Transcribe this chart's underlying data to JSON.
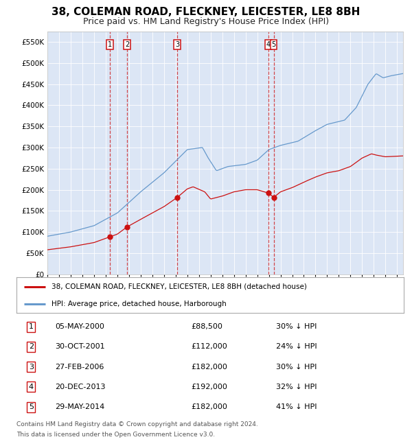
{
  "title": "38, COLEMAN ROAD, FLECKNEY, LEICESTER, LE8 8BH",
  "subtitle": "Price paid vs. HM Land Registry's House Price Index (HPI)",
  "title_fontsize": 11,
  "subtitle_fontsize": 9,
  "background_color": "#ffffff",
  "plot_bg_color": "#dce6f5",
  "hpi_color": "#6699cc",
  "price_color": "#cc1111",
  "vline_color": "#cc1111",
  "ylim": [
    0,
    575000
  ],
  "yticks": [
    0,
    50000,
    100000,
    150000,
    200000,
    250000,
    300000,
    350000,
    400000,
    450000,
    500000,
    550000
  ],
  "ytick_labels": [
    "£0",
    "£50K",
    "£100K",
    "£150K",
    "£200K",
    "£250K",
    "£300K",
    "£350K",
    "£400K",
    "£450K",
    "£500K",
    "£550K"
  ],
  "legend_labels": [
    "38, COLEMAN ROAD, FLECKNEY, LEICESTER, LE8 8BH (detached house)",
    "HPI: Average price, detached house, Harborough"
  ],
  "transactions": [
    {
      "num": 1,
      "date": "05-MAY-2000",
      "x": 2000.35,
      "price": 88500
    },
    {
      "num": 2,
      "date": "30-OCT-2001",
      "x": 2001.83,
      "price": 112000
    },
    {
      "num": 3,
      "date": "27-FEB-2006",
      "x": 2006.15,
      "price": 182000
    },
    {
      "num": 4,
      "date": "20-DEC-2013",
      "x": 2013.97,
      "price": 192000
    },
    {
      "num": 5,
      "date": "29-MAY-2014",
      "x": 2014.41,
      "price": 182000
    }
  ],
  "table_rows": [
    {
      "num": 1,
      "date": "05-MAY-2000",
      "price": "£88,500",
      "pct": "30% ↓ HPI"
    },
    {
      "num": 2,
      "date": "30-OCT-2001",
      "price": "£112,000",
      "pct": "24% ↓ HPI"
    },
    {
      "num": 3,
      "date": "27-FEB-2006",
      "price": "£182,000",
      "pct": "30% ↓ HPI"
    },
    {
      "num": 4,
      "date": "20-DEC-2013",
      "price": "£192,000",
      "pct": "32% ↓ HPI"
    },
    {
      "num": 5,
      "date": "29-MAY-2014",
      "price": "£182,000",
      "pct": "41% ↓ HPI"
    }
  ],
  "footer1": "Contains HM Land Registry data © Crown copyright and database right 2024.",
  "footer2": "This data is licensed under the Open Government Licence v3.0.",
  "xmin": 1995.0,
  "xmax": 2025.5
}
